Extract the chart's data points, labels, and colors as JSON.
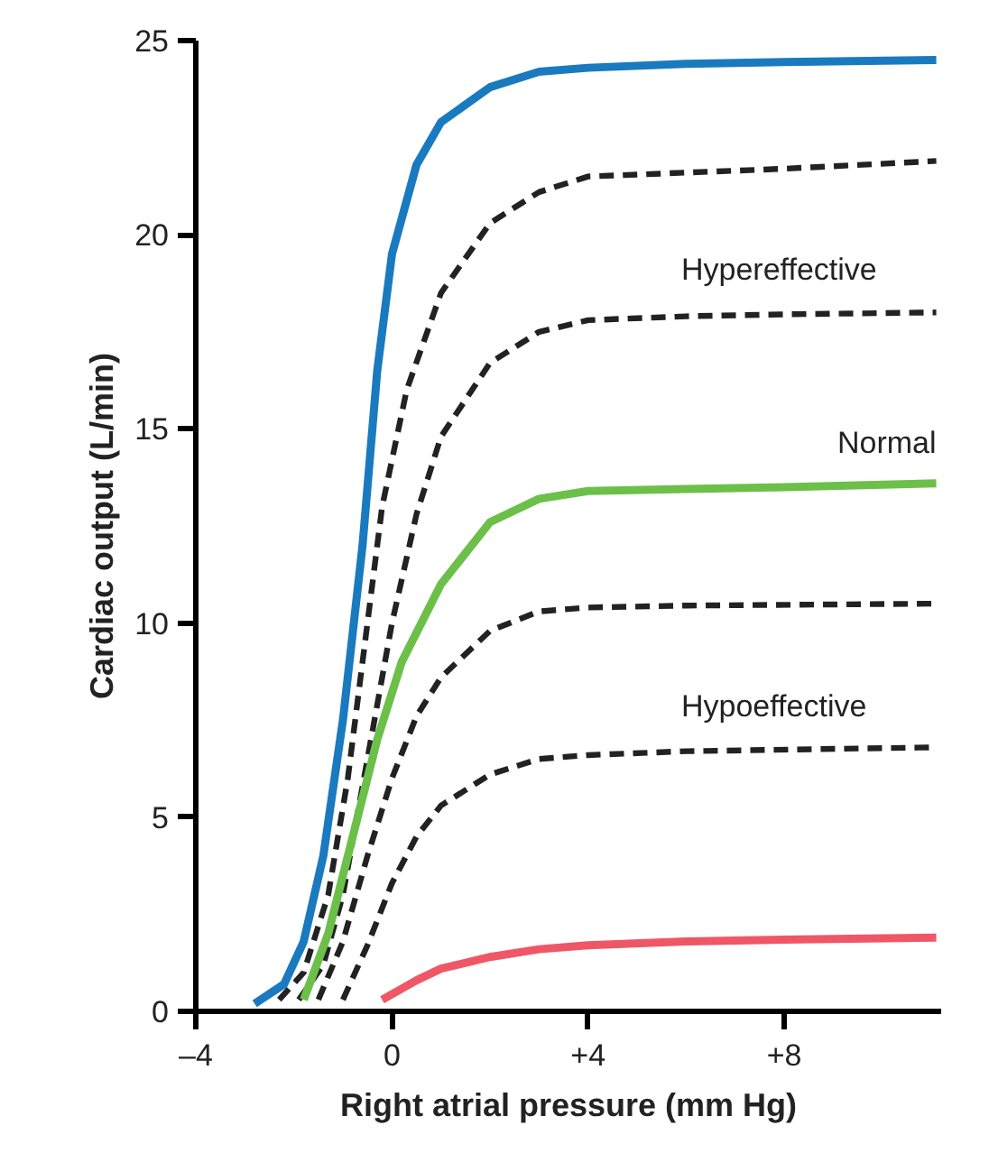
{
  "chart_data": {
    "type": "line",
    "xlabel": "Right atrial pressure (mm Hg)",
    "ylabel": "Cardiac output (L/min)",
    "xlim": [
      -4,
      11.2
    ],
    "ylim": [
      0,
      25
    ],
    "xticks": [
      {
        "value": -4,
        "label": "–4"
      },
      0,
      {
        "value": 4,
        "label": "+4"
      },
      {
        "value": 8,
        "label": "+8"
      }
    ],
    "yticks": [
      0,
      5,
      10,
      15,
      20,
      25
    ],
    "grid": false,
    "series": [
      {
        "color": "#1a7abf",
        "line_style": "solid",
        "x": [
          -2.8,
          -2.2,
          -1.8,
          -1.4,
          -1,
          -0.6,
          -0.3,
          0,
          0.5,
          1,
          2,
          3,
          4,
          6,
          8,
          11.1
        ],
        "values": [
          0.2,
          0.7,
          1.8,
          4,
          7.5,
          12,
          16.5,
          19.5,
          21.8,
          22.9,
          23.8,
          24.2,
          24.3,
          24.4,
          24.45,
          24.5
        ]
      },
      {
        "color": "#222222",
        "line_style": "dashed",
        "x": [
          -2.3,
          -1.8,
          -1.3,
          -0.9,
          -0.5,
          -0.2,
          0.3,
          1,
          2,
          3,
          4,
          6,
          8,
          11.1
        ],
        "values": [
          0.3,
          1,
          3,
          6,
          10,
          13,
          16,
          18.5,
          20.3,
          21.1,
          21.5,
          21.6,
          21.7,
          21.9
        ]
      },
      {
        "color": "#222222",
        "line_style": "dashed",
        "x": [
          -1.9,
          -1.4,
          -1,
          -0.5,
          0,
          0.5,
          1,
          2,
          3,
          4,
          6,
          8,
          11.1
        ],
        "values": [
          0.3,
          1.2,
          3,
          6.5,
          10,
          12.8,
          14.8,
          16.7,
          17.5,
          17.8,
          17.9,
          17.95,
          18
        ]
      },
      {
        "name": "Normal",
        "color": "#6cc04a",
        "line_style": "solid",
        "x": [
          -1.8,
          -1.3,
          -0.8,
          -0.3,
          0.2,
          1,
          2,
          3,
          4,
          6,
          8,
          11.1
        ],
        "values": [
          0.3,
          2,
          4.5,
          7,
          9,
          11,
          12.6,
          13.2,
          13.4,
          13.45,
          13.5,
          13.6
        ]
      },
      {
        "color": "#222222",
        "line_style": "dashed",
        "x": [
          -1.5,
          -1,
          -0.5,
          0,
          0.5,
          1,
          2,
          3,
          4,
          6,
          11.1
        ],
        "values": [
          0.3,
          1.8,
          4,
          6,
          7.6,
          8.6,
          9.8,
          10.3,
          10.4,
          10.45,
          10.5
        ]
      },
      {
        "color": "#222222",
        "line_style": "dashed",
        "x": [
          -1,
          -0.5,
          0,
          0.5,
          1,
          2,
          3,
          4,
          6,
          11.1
        ],
        "values": [
          0.3,
          1.7,
          3.3,
          4.5,
          5.3,
          6.1,
          6.5,
          6.6,
          6.7,
          6.8
        ]
      },
      {
        "color": "#ef5767",
        "line_style": "solid",
        "x": [
          -0.2,
          0.5,
          1,
          2,
          3,
          4,
          6,
          8,
          11.1
        ],
        "values": [
          0.3,
          0.8,
          1.1,
          1.4,
          1.6,
          1.7,
          1.8,
          1.85,
          1.9
        ]
      }
    ],
    "annotations": [
      "Hypereffective",
      "Hypoeffective"
    ]
  }
}
